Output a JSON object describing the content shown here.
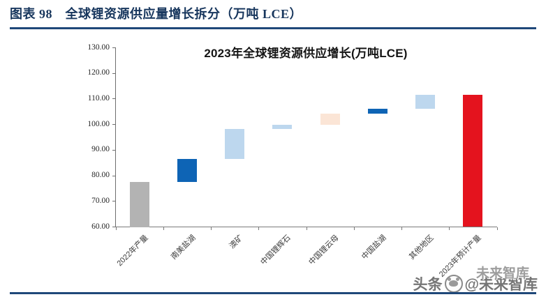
{
  "header": {
    "caption": "图表 98　全球锂资源供应量增长拆分（万吨 LCE）"
  },
  "watermark": {
    "text_left": "头条",
    "text_right": "@未来智库",
    "ghost_text": "未来智库"
  },
  "colors": {
    "caption_navy": "#17365d",
    "rule_navy": "#1f4879",
    "gray_bar": "#b3b3b3",
    "dark_blue_bar": "#0e64b5",
    "light_blue_bar": "#bdd7ee",
    "peach_bar": "#fbe5d6",
    "red_bar": "#e4131e",
    "axis": "#6e6e6e"
  },
  "chart_data": {
    "type": "bar",
    "subtype": "waterfall",
    "title": "2023年全球锂资源供应增长(万吨LCE)",
    "xlabel": "",
    "ylabel": "",
    "ylim": [
      60,
      130
    ],
    "ytick_step": 10,
    "ytick_labels": [
      "60.00",
      "70.00",
      "80.00",
      "90.00",
      "100.00",
      "110.00",
      "120.00",
      "130.00"
    ],
    "grid": false,
    "legend": null,
    "categories": [
      "2022年产量",
      "南美盐湖",
      "澳矿",
      "中国锂辉石",
      "中国锂云母",
      "中国盐湖",
      "其他地区",
      "2023年预计产量"
    ],
    "bars": [
      {
        "label": "2022年产量",
        "kind": "total",
        "start": 60,
        "end": 77.5,
        "value": 77.5,
        "color": "#b3b3b3"
      },
      {
        "label": "南美盐湖",
        "kind": "increase",
        "start": 77.5,
        "end": 86.5,
        "value": 9.0,
        "color": "#0e64b5"
      },
      {
        "label": "澳矿",
        "kind": "increase",
        "start": 86.5,
        "end": 98.2,
        "value": 11.7,
        "color": "#bdd7ee"
      },
      {
        "label": "中国锂辉石",
        "kind": "increase",
        "start": 98.2,
        "end": 99.9,
        "value": 1.7,
        "color": "#bdd7ee"
      },
      {
        "label": "中国锂云母",
        "kind": "increase",
        "start": 99.9,
        "end": 104.2,
        "value": 4.3,
        "color": "#fbe5d6"
      },
      {
        "label": "中国盐湖",
        "kind": "increase",
        "start": 104.2,
        "end": 106.2,
        "value": 2.0,
        "color": "#0e64b5"
      },
      {
        "label": "其他地区",
        "kind": "increase",
        "start": 106.2,
        "end": 111.5,
        "value": 5.3,
        "color": "#bdd7ee"
      },
      {
        "label": "2023年预计产量",
        "kind": "total",
        "start": 60,
        "end": 111.5,
        "value": 111.5,
        "color": "#e4131e"
      }
    ]
  }
}
